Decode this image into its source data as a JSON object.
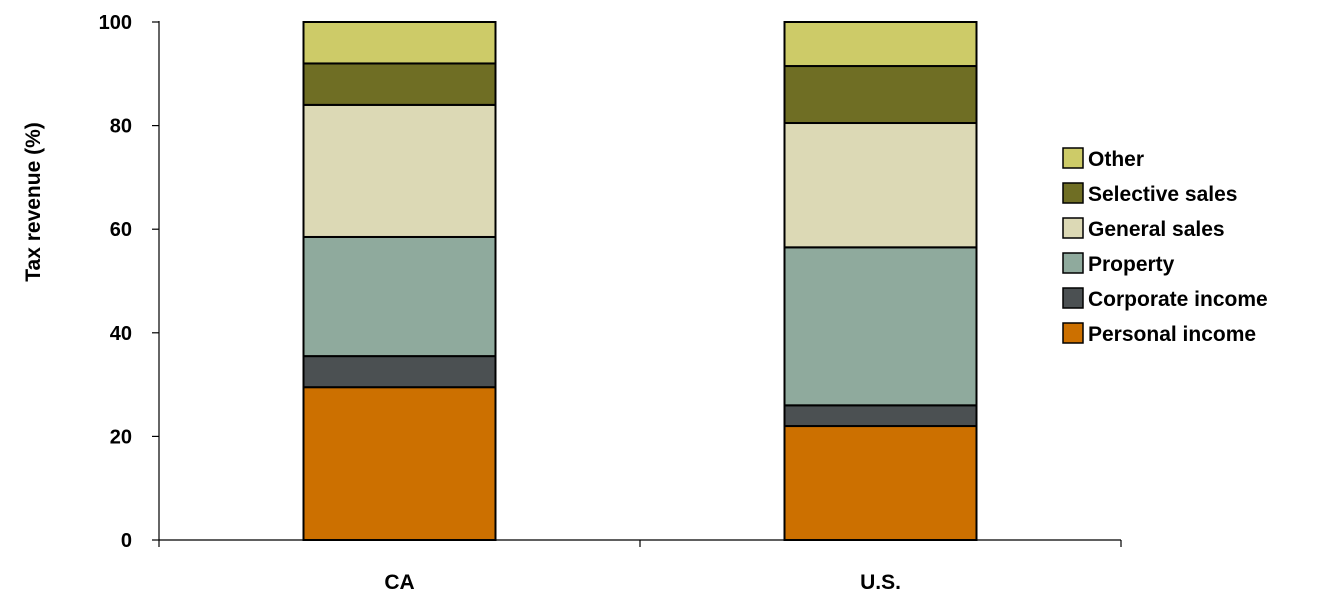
{
  "chart_data": {
    "type": "bar",
    "stacked": true,
    "categories": [
      "CA",
      "U.S."
    ],
    "series": [
      {
        "name": "Personal income",
        "values": [
          29.5,
          22.0
        ],
        "color": "#CC7000"
      },
      {
        "name": "Corporate income",
        "values": [
          6.0,
          4.0
        ],
        "color": "#4B5052"
      },
      {
        "name": "Property",
        "values": [
          23.0,
          30.5
        ],
        "color": "#8FAA9D"
      },
      {
        "name": "General sales",
        "values": [
          25.5,
          24.0
        ],
        "color": "#DCD9B5"
      },
      {
        "name": "Selective sales",
        "values": [
          8.0,
          11.0
        ],
        "color": "#6F6E24"
      },
      {
        "name": "Other",
        "values": [
          8.0,
          8.5
        ],
        "color": "#CDCB68"
      }
    ],
    "title": "",
    "xlabel": "",
    "ylabel": "Tax revenue (%)",
    "ylim": [
      0,
      100
    ],
    "yticks": [
      0,
      20,
      40,
      60,
      80,
      100
    ],
    "grid": false,
    "legend": "right"
  }
}
